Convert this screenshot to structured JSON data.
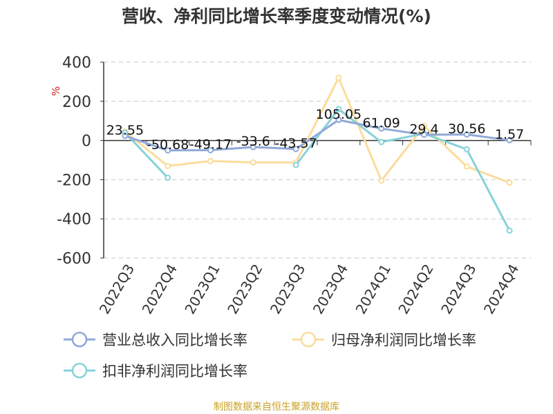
{
  "chart_data": {
    "type": "line",
    "title": "营收、净利同比增长率季度变动情况(%)",
    "ylabel": "%",
    "ylim": [
      -600,
      400
    ],
    "yticks": [
      400,
      200,
      0,
      -200,
      -400,
      -600
    ],
    "categories": [
      "2022Q3",
      "2022Q4",
      "2023Q1",
      "2023Q2",
      "2023Q3",
      "2023Q4",
      "2024Q1",
      "2024Q2",
      "2024Q3",
      "2024Q4"
    ],
    "grid": true,
    "legend_position": "bottom",
    "series": [
      {
        "name": "营业总收入同比增长率",
        "color": "#8fa8d8",
        "values": [
          23.55,
          -50.68,
          -49.17,
          -33.6,
          -43.57,
          105.05,
          61.09,
          29.4,
          30.56,
          1.57
        ],
        "labels": [
          "23.55",
          "-50.68",
          "-49.17",
          "-33.6",
          "-43.57",
          "105.05",
          "61.09",
          "29.4",
          "30.56",
          "1.57"
        ]
      },
      {
        "name": "归母净利润同比增长率",
        "color": "#fbdc9c",
        "values": [
          45,
          -130,
          -105,
          -112,
          -112,
          320,
          -205,
          75,
          -133,
          -215
        ]
      },
      {
        "name": "扣非净利润同比增长率",
        "color": "#86d2d8",
        "values": [
          40,
          -190,
          null,
          null,
          -125,
          160,
          -8,
          35,
          -45,
          -460
        ]
      }
    ],
    "source": "制图数据来自恒生聚源数据库"
  }
}
